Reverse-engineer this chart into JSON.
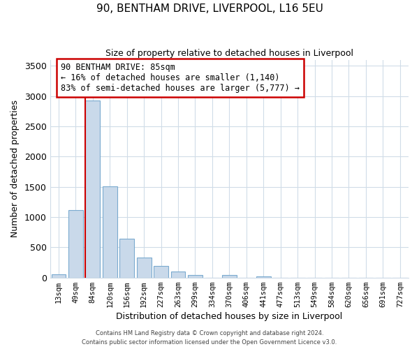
{
  "title1": "90, BENTHAM DRIVE, LIVERPOOL, L16 5EU",
  "title2": "Size of property relative to detached houses in Liverpool",
  "xlabel": "Distribution of detached houses by size in Liverpool",
  "ylabel": "Number of detached properties",
  "bin_labels": [
    "13sqm",
    "49sqm",
    "84sqm",
    "120sqm",
    "156sqm",
    "192sqm",
    "227sqm",
    "263sqm",
    "299sqm",
    "334sqm",
    "370sqm",
    "406sqm",
    "441sqm",
    "477sqm",
    "513sqm",
    "549sqm",
    "584sqm",
    "620sqm",
    "656sqm",
    "691sqm",
    "727sqm"
  ],
  "bar_heights": [
    50,
    1110,
    2930,
    1510,
    640,
    330,
    195,
    100,
    45,
    0,
    40,
    0,
    15,
    0,
    0,
    0,
    0,
    0,
    0,
    0,
    0
  ],
  "bar_color": "#c9d9ea",
  "bar_edgecolor": "#7aaacf",
  "red_line_label": "90 BENTHAM DRIVE: 85sqm",
  "annotation_line1": "← 16% of detached houses are smaller (1,140)",
  "annotation_line2": "83% of semi-detached houses are larger (5,777) →",
  "annotation_box_color": "#ffffff",
  "annotation_box_edgecolor": "#cc0000",
  "red_line_color": "#cc0000",
  "ylim": [
    0,
    3600
  ],
  "yticks": [
    0,
    500,
    1000,
    1500,
    2000,
    2500,
    3000,
    3500
  ],
  "footer1": "Contains HM Land Registry data © Crown copyright and database right 2024.",
  "footer2": "Contains public sector information licensed under the Open Government Licence v3.0.",
  "background_color": "#ffffff",
  "plot_background": "#ffffff",
  "grid_color": "#d0dce8"
}
